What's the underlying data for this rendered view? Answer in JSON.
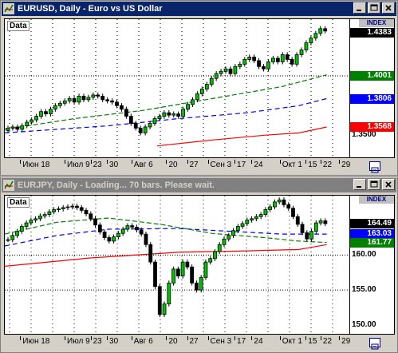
{
  "windows": [
    {
      "title": "EURUSD, Daily - Euro vs US Dollar",
      "active": true,
      "data_label": "Data",
      "index_label": "INDEX",
      "price_labels": [
        {
          "text": "1.4383",
          "bg": "#000000",
          "fg": "#ffffff",
          "value": 1.4383
        },
        {
          "text": "1.4001",
          "bg": "#008000",
          "fg": "#ffffff",
          "value": 1.4001
        },
        {
          "text": "1.3806",
          "bg": "#0000ff",
          "fg": "#ffffff",
          "value": 1.3806
        },
        {
          "text": "1.3568",
          "bg": "#ff0000",
          "fg": "#ffffff",
          "value": 1.3568
        }
      ],
      "scale_labels": [
        {
          "text": "1.3500",
          "value": 1.35
        }
      ],
      "time_ticks": [
        "Июн 18",
        "Июл 9",
        "23",
        "30",
        "Авг 6",
        "20",
        "27",
        "Сен 3",
        "17",
        "24",
        "Окт 1",
        "15",
        "22",
        "29"
      ]
    },
    {
      "title": "EURJPY, Daily - Loading... 70 bars. Please wait.",
      "active": false,
      "data_label": "Data",
      "index_label": "INDEX",
      "price_labels": [
        {
          "text": "164.49",
          "bg": "#000000",
          "fg": "#ffffff",
          "value": 164.49
        },
        {
          "text": "163.03",
          "bg": "#0000ff",
          "fg": "#ffffff",
          "value": 163.03
        },
        {
          "text": "161.77",
          "bg": "#008000",
          "fg": "#ffffff",
          "value": 161.77
        }
      ],
      "scale_labels": [
        {
          "text": "160.00",
          "value": 160.0
        },
        {
          "text": "155.00",
          "value": 155.0
        },
        {
          "text": "150.00",
          "value": 150.0
        }
      ],
      "time_ticks": [
        "Июн 18",
        "Июл 9",
        "23",
        "30",
        "Авг 6",
        "20",
        "27",
        "Сен 3",
        "17",
        "24",
        "Окт 1",
        "15",
        "22",
        "29"
      ]
    }
  ]
}
